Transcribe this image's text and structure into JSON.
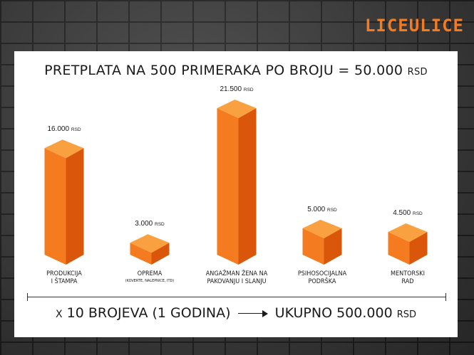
{
  "logo": "LICEULICE",
  "title": {
    "text": "PRETPLATA NA 500 PRIMERAKA PO BROJU = 50.000",
    "unit": "RSD"
  },
  "footer": {
    "prefix": "X",
    "text": "10 BROJEVA (1 GODINA)",
    "result": "UKUPNO  500.000",
    "unit": "RSD"
  },
  "colors": {
    "front": "#f47b20",
    "side": "#d9560a",
    "top": "#f9a040",
    "brand": "#f47b20"
  },
  "chart_data": {
    "type": "bar",
    "title": "PRETPLATA NA 500 PRIMERAKA PO BROJU = 50.000 RSD",
    "categories": [
      {
        "line1": "PRODUKCIJA",
        "line2": "I ŠTAMPA",
        "sub": ""
      },
      {
        "line1": "OPREMA",
        "line2": "",
        "sub": "(KOVERTE, NALEPNICE, ITD)"
      },
      {
        "line1": "ANGAŽMAN ŽENA NA",
        "line2": "PAKOVANJU I SLANJU",
        "sub": ""
      },
      {
        "line1": "PSIHOSOCIJALNA",
        "line2": "PODRŠKA",
        "sub": ""
      },
      {
        "line1": "MENTORSKI",
        "line2": "RAD",
        "sub": ""
      }
    ],
    "values": [
      16000,
      3000,
      21500,
      5000,
      4500
    ],
    "value_labels": [
      "16.000",
      "3.000",
      "21.500",
      "5.000",
      "4.500"
    ],
    "unit": "RSD",
    "ylim": [
      0,
      21500
    ],
    "grid": false,
    "legend": "none"
  }
}
